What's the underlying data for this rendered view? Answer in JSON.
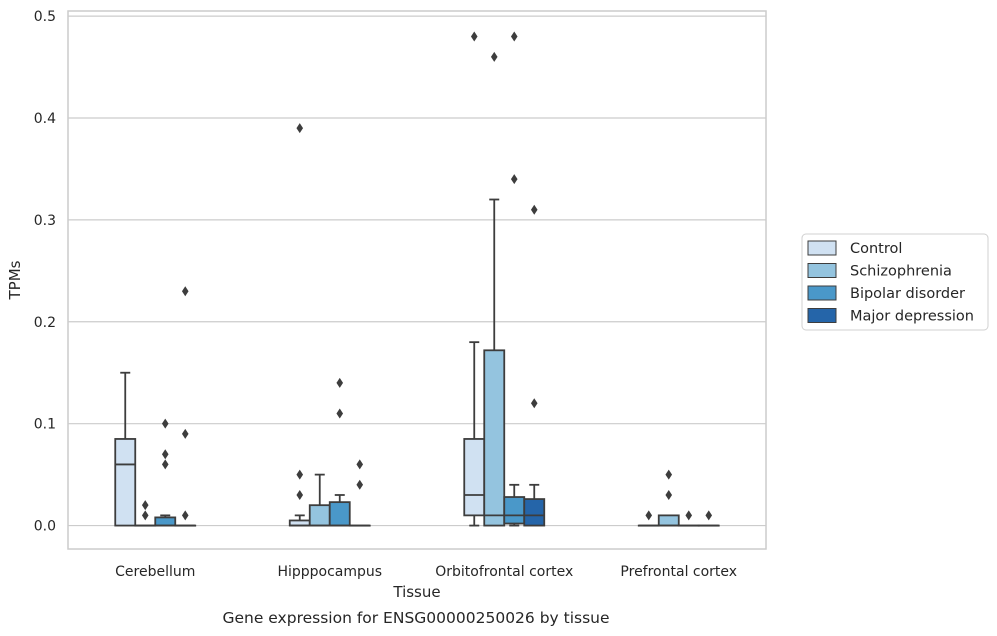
{
  "caption": "Gene expression for ENSG00000250026 by tissue",
  "chart_data": {
    "type": "box",
    "xlabel": "Tissue",
    "ylabel": "TPMs",
    "ylim": [
      -0.023,
      0.505
    ],
    "yticks": [
      0.0,
      0.1,
      0.2,
      0.3,
      0.4,
      0.5
    ],
    "ytick_labels": [
      "0.0",
      "0.1",
      "0.2",
      "0.3",
      "0.4",
      "0.5"
    ],
    "grid": "horizontal",
    "legend_position": "right",
    "categories": [
      "Cerebellum",
      "Hipppocampus",
      "Orbitofrontal cortex",
      "Prefrontal cortex"
    ],
    "series": [
      {
        "name": "Control",
        "color": "#d0e1f2",
        "boxes": [
          {
            "q1": 0.0,
            "median": 0.06,
            "q3": 0.085,
            "whisker_low": 0.0,
            "whisker_high": 0.15,
            "outliers": []
          },
          {
            "q1": 0.0,
            "median": 0.0,
            "q3": 0.005,
            "whisker_low": 0.0,
            "whisker_high": 0.01,
            "outliers": [
              0.03,
              0.05,
              0.39
            ]
          },
          {
            "q1": 0.01,
            "median": 0.03,
            "q3": 0.085,
            "whisker_low": 0.0,
            "whisker_high": 0.18,
            "outliers": [
              0.48
            ]
          },
          {
            "q1": 0.0,
            "median": 0.0,
            "q3": 0.0,
            "whisker_low": 0.0,
            "whisker_high": 0.0,
            "outliers": [
              0.01
            ]
          }
        ]
      },
      {
        "name": "Schizophrenia",
        "color": "#94c4df",
        "boxes": [
          {
            "q1": 0.0,
            "median": 0.0,
            "q3": 0.0,
            "whisker_low": 0.0,
            "whisker_high": 0.0,
            "outliers": [
              0.01,
              0.02
            ]
          },
          {
            "q1": 0.0,
            "median": 0.0,
            "q3": 0.02,
            "whisker_low": 0.0,
            "whisker_high": 0.05,
            "outliers": []
          },
          {
            "q1": 0.0,
            "median": 0.01,
            "q3": 0.172,
            "whisker_low": 0.0,
            "whisker_high": 0.32,
            "outliers": [
              0.46
            ]
          },
          {
            "q1": 0.0,
            "median": 0.0,
            "q3": 0.01,
            "whisker_low": 0.0,
            "whisker_high": 0.01,
            "outliers": [
              0.03,
              0.05
            ]
          }
        ]
      },
      {
        "name": "Bipolar disorder",
        "color": "#4a98c9",
        "boxes": [
          {
            "q1": 0.0,
            "median": 0.0,
            "q3": 0.008,
            "whisker_low": 0.0,
            "whisker_high": 0.01,
            "outliers": [
              0.06,
              0.07,
              0.1
            ]
          },
          {
            "q1": 0.0,
            "median": 0.0,
            "q3": 0.023,
            "whisker_low": 0.0,
            "whisker_high": 0.03,
            "outliers": [
              0.11,
              0.14
            ]
          },
          {
            "q1": 0.002,
            "median": 0.01,
            "q3": 0.028,
            "whisker_low": 0.0,
            "whisker_high": 0.04,
            "outliers": [
              0.34,
              0.48
            ]
          },
          {
            "q1": 0.0,
            "median": 0.0,
            "q3": 0.0,
            "whisker_low": 0.0,
            "whisker_high": 0.0,
            "outliers": [
              0.01
            ]
          }
        ]
      },
      {
        "name": "Major depression",
        "color": "#2565a9",
        "boxes": [
          {
            "q1": 0.0,
            "median": 0.0,
            "q3": 0.0,
            "whisker_low": 0.0,
            "whisker_high": 0.0,
            "outliers": [
              0.01,
              0.09,
              0.23
            ]
          },
          {
            "q1": 0.0,
            "median": 0.0,
            "q3": 0.0,
            "whisker_low": 0.0,
            "whisker_high": 0.0,
            "outliers": [
              0.04,
              0.06
            ]
          },
          {
            "q1": 0.0,
            "median": 0.01,
            "q3": 0.026,
            "whisker_low": 0.0,
            "whisker_high": 0.04,
            "outliers": [
              0.12,
              0.31
            ]
          },
          {
            "q1": 0.0,
            "median": 0.0,
            "q3": 0.0,
            "whisker_low": 0.0,
            "whisker_high": 0.0,
            "outliers": [
              0.01
            ]
          }
        ]
      }
    ]
  }
}
